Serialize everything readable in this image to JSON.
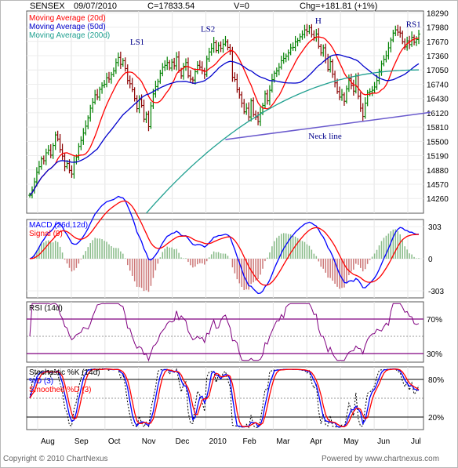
{
  "header": {
    "symbol": "SENSEX",
    "date": "09/07/2010",
    "close": "C=17833.54",
    "volume": "V=0",
    "change": "Chg=+181.81 (+1%)"
  },
  "footer": {
    "copyright": "Copyright © 2010 ChartNexus",
    "powered": "Powered by www.chartnexus.com"
  },
  "colors": {
    "price_bar_up": "#008000",
    "price_bar_down": "#8b0000",
    "ma20": "#ff0000",
    "ma50": "#0000cc",
    "ma200": "#20a090",
    "neckline": "#6a5acd",
    "annotation": "#00008b",
    "macd": "#0000ff",
    "signal": "#ff0000",
    "rsi": "#800080",
    "stoch_k": "#000000",
    "stoch_d": "#0000ff",
    "stoch_smooth": "#ff0000",
    "hist_pos": "#88bb88",
    "hist_neg": "#cc7777"
  },
  "x_axis_months": [
    "Aug",
    "Sep",
    "Oct",
    "Nov",
    "Dec",
    "2010",
    "Feb",
    "Mar",
    "Apr",
    "May",
    "Jun",
    "Jul"
  ],
  "chart_data": [
    {
      "type": "line",
      "panel": "price",
      "title": "SENSEX",
      "legend": [
        "Moving Average (20d)",
        "Moving Average (50d)",
        "Moving Average (200d)"
      ],
      "y_ticks": [
        18290,
        17980,
        17670,
        17360,
        17050,
        16740,
        16430,
        16120,
        15810,
        15500,
        15190,
        14880,
        14570,
        14260
      ],
      "ylim": [
        13940,
        18330
      ],
      "annotations": [
        {
          "label": "LS1",
          "month_index": 2.7,
          "price": 17600
        },
        {
          "label": "LS2",
          "month_index": 4.8,
          "price": 17880
        },
        {
          "label": "H",
          "month_index": 8.2,
          "price": 18060
        },
        {
          "label": "RS1",
          "month_index": 10.9,
          "price": 17980
        },
        {
          "label": "Neck line",
          "month_index": 8.0,
          "price": 15560
        }
      ],
      "neckline": {
        "start": {
          "month_index": 5.3,
          "price": 15540
        },
        "end": {
          "month_index": 11.4,
          "price": 16130
        }
      },
      "closes": [
        14330,
        14450,
        14620,
        14830,
        14950,
        15120,
        15080,
        15250,
        15310,
        15200,
        15410,
        15640,
        15550,
        15320,
        15180,
        14950,
        15020,
        14870,
        14790,
        15050,
        15160,
        15390,
        15520,
        15680,
        15830,
        16010,
        16220,
        16350,
        16510,
        16460,
        16630,
        16710,
        16740,
        16880,
        16850,
        16950,
        17030,
        17210,
        17320,
        17170,
        17250,
        17080,
        16820,
        16750,
        16620,
        16430,
        16210,
        16410,
        16280,
        15980,
        16090,
        15820,
        16270,
        16530,
        16690,
        16800,
        16980,
        17110,
        17150,
        17210,
        17090,
        17220,
        17140,
        17330,
        17040,
        16920,
        17130,
        17210,
        16920,
        16850,
        16830,
        17010,
        17150,
        17110,
        17040,
        16950,
        17290,
        17440,
        17520,
        17640,
        17470,
        17580,
        17520,
        17610,
        17660,
        17540,
        17460,
        16890,
        16840,
        16620,
        16510,
        16330,
        16140,
        16220,
        16030,
        16380,
        16080,
        16030,
        15930,
        16120,
        16280,
        16530,
        16380,
        16610,
        16840,
        16980,
        17030,
        17110,
        17250,
        17300,
        17350,
        17420,
        17530,
        17540,
        17660,
        17690,
        17770,
        17820,
        17920,
        17880,
        17970,
        17820,
        17760,
        17830,
        17560,
        17420,
        17530,
        17290,
        17060,
        17230,
        16960,
        16770,
        16580,
        16460,
        16510,
        16370,
        16640,
        16860,
        16710,
        16590,
        16920,
        16480,
        16220,
        16040,
        16330,
        16560,
        16580,
        16610,
        16680,
        16820,
        17020,
        17180,
        17280,
        17360,
        17530,
        17700,
        17850,
        17920,
        17870,
        17850,
        17660,
        17550,
        17680,
        17600,
        17760,
        17650,
        17710,
        17830
      ]
    },
    {
      "type": "line",
      "panel": "macd",
      "title": "MACD (26d,12d)",
      "series_names": [
        "MACD (26d,12d)",
        "Signal (9)"
      ],
      "y_ticks": [
        303,
        0,
        -303
      ],
      "ylim": [
        -370,
        370
      ]
    },
    {
      "type": "line",
      "panel": "rsi",
      "title": "RSI (14d)",
      "y_ticks": [
        "70%",
        "30%"
      ],
      "ylim": [
        20,
        90
      ]
    },
    {
      "type": "line",
      "panel": "stochastic",
      "title": "Stochastic %K (14d)",
      "series_names": [
        "Stochastic %K (14d)",
        "%D (3)",
        "Smoothed %D (3)"
      ],
      "y_ticks": [
        "80%",
        "20%"
      ],
      "ylim": [
        0,
        100
      ]
    }
  ]
}
